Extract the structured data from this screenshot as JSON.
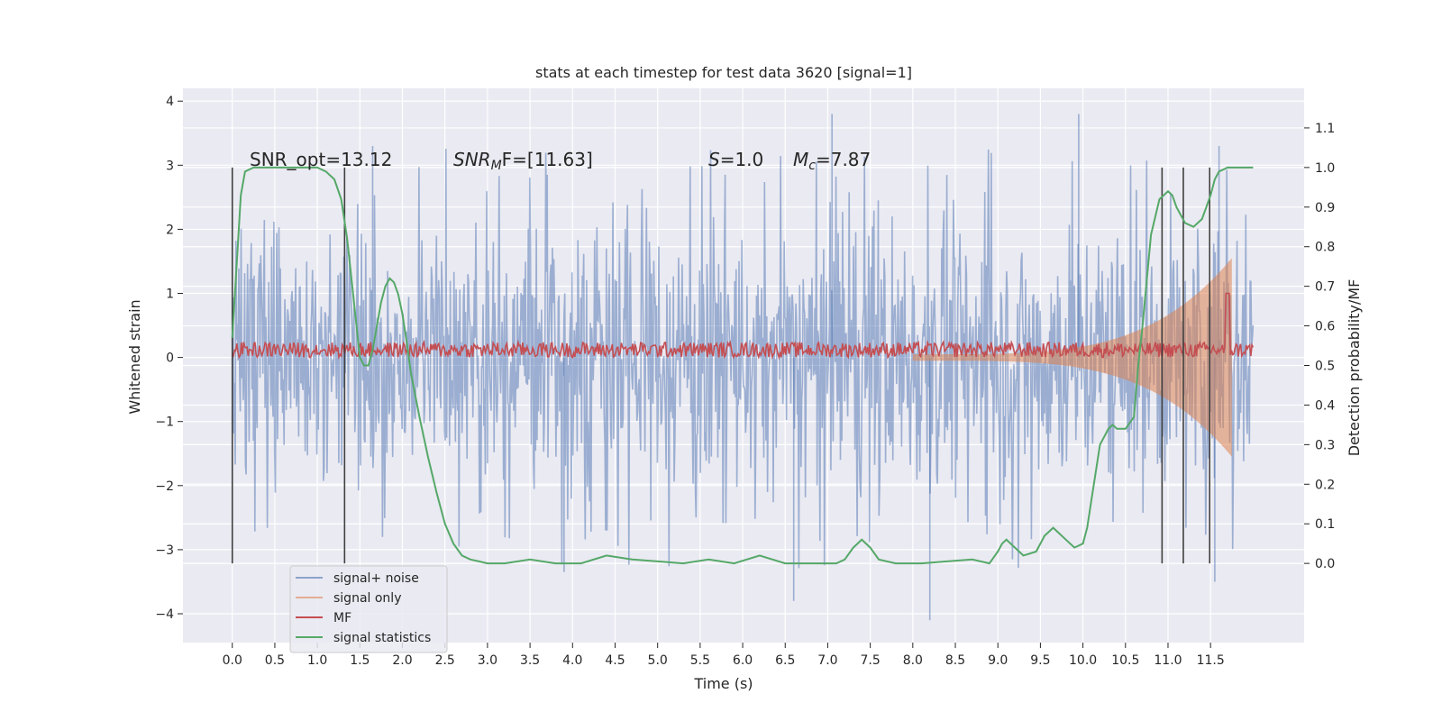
{
  "chart_data": {
    "type": "line",
    "title": "stats at each timestep for test data 3620 [signal=1]",
    "xlabel": "Time (s)",
    "ylabel": "Whitened strain",
    "ylabel_right": "Detection probability/MF",
    "xlim": [
      -0.58,
      12.6
    ],
    "ylim": [
      -4.45,
      4.2
    ],
    "ylim_right": [
      -0.2,
      1.2
    ],
    "x_ticks": [
      "0.0",
      "0.5",
      "1.0",
      "1.5",
      "2.0",
      "2.5",
      "3.0",
      "3.5",
      "4.0",
      "4.5",
      "5.0",
      "5.5",
      "6.0",
      "6.5",
      "7.0",
      "7.5",
      "8.0",
      "8.5",
      "9.0",
      "9.5",
      "10.0",
      "10.5",
      "11.0",
      "11.5"
    ],
    "y_ticks_left": [
      "−4",
      "−3",
      "−2",
      "−1",
      "0",
      "1",
      "2",
      "3",
      "4"
    ],
    "y_ticks_right": [
      "0.0",
      "0.1",
      "0.2",
      "0.3",
      "0.4",
      "0.5",
      "0.6",
      "0.7",
      "0.8",
      "0.9",
      "1.0",
      "1.1"
    ],
    "grid": true,
    "legend_position": "lower-left",
    "annotations": {
      "snr_opt": "SNR_opt=13.12",
      "snr_mf_sym": "SNR",
      "snr_mf_sub": "M",
      "snr_mf_tail": "F=[11.63]",
      "s_sym": "S",
      "s_tail": "=1.0",
      "mc_sym": "M",
      "mc_sub": "c",
      "mc_tail": "=7.87"
    },
    "series": [
      {
        "name": "signal+ noise",
        "color": "#4c72b0",
        "opacity": 0.5,
        "axis": "left",
        "envelope": {
          "x_range": [
            0.0,
            12.0
          ],
          "typical_amplitude": 1.4,
          "max_spikes": [
            3.8,
            -4.1
          ]
        }
      },
      {
        "name": "signal only",
        "color": "#dd8452",
        "opacity": 0.5,
        "axis": "left",
        "chirp": {
          "start": 8.0,
          "end": 11.75,
          "peak_amplitude": 1.55
        }
      },
      {
        "name": "MF",
        "color": "#c44e52",
        "axis": "left",
        "baseline": 0.12,
        "jitter": 0.12,
        "peak": {
          "x": 11.7,
          "y": 1.0
        }
      },
      {
        "name": "signal statistics",
        "color": "#55a868",
        "axis": "right",
        "x": [
          0.0,
          0.05,
          0.1,
          0.15,
          0.25,
          0.4,
          0.6,
          0.8,
          1.0,
          1.1,
          1.2,
          1.28,
          1.35,
          1.42,
          1.5,
          1.55,
          1.6,
          1.65,
          1.7,
          1.75,
          1.8,
          1.85,
          1.9,
          1.95,
          2.0,
          2.05,
          2.1,
          2.2,
          2.3,
          2.4,
          2.5,
          2.6,
          2.7,
          2.8,
          2.9,
          3.0,
          3.2,
          3.5,
          3.8,
          4.1,
          4.4,
          4.7,
          5.0,
          5.3,
          5.6,
          5.9,
          6.2,
          6.5,
          6.8,
          7.1,
          7.2,
          7.3,
          7.4,
          7.5,
          7.6,
          7.8,
          8.1,
          8.4,
          8.7,
          8.9,
          9.0,
          9.05,
          9.1,
          9.2,
          9.3,
          9.45,
          9.55,
          9.65,
          9.7,
          9.8,
          9.9,
          10.0,
          10.05,
          10.1,
          10.2,
          10.3,
          10.35,
          10.4,
          10.5,
          10.6,
          10.65,
          10.7,
          10.8,
          10.9,
          10.95,
          11.0,
          11.05,
          11.1,
          11.2,
          11.3,
          11.4,
          11.45,
          11.5,
          11.55,
          11.6,
          11.7,
          11.8,
          11.9,
          11.95,
          12.0
        ],
        "y": [
          0.57,
          0.75,
          0.93,
          0.99,
          1.0,
          1.0,
          1.0,
          1.0,
          1.0,
          0.99,
          0.97,
          0.92,
          0.82,
          0.68,
          0.52,
          0.5,
          0.5,
          0.54,
          0.6,
          0.66,
          0.7,
          0.72,
          0.71,
          0.68,
          0.63,
          0.56,
          0.48,
          0.37,
          0.27,
          0.18,
          0.1,
          0.05,
          0.02,
          0.01,
          0.005,
          0.0,
          0.0,
          0.01,
          0.0,
          0.0,
          0.02,
          0.01,
          0.005,
          0.0,
          0.01,
          0.0,
          0.02,
          0.0,
          0.0,
          0.0,
          0.01,
          0.04,
          0.06,
          0.04,
          0.01,
          0.0,
          0.0,
          0.005,
          0.01,
          0.0,
          0.03,
          0.05,
          0.06,
          0.04,
          0.02,
          0.03,
          0.07,
          0.09,
          0.08,
          0.06,
          0.04,
          0.05,
          0.09,
          0.16,
          0.3,
          0.34,
          0.35,
          0.34,
          0.34,
          0.37,
          0.5,
          0.6,
          0.83,
          0.92,
          0.93,
          0.94,
          0.93,
          0.9,
          0.86,
          0.85,
          0.87,
          0.9,
          0.93,
          0.97,
          0.99,
          1.0,
          1.0,
          1.0,
          1.0,
          1.0
        ]
      },
      {
        "name": "",
        "color": "#404040",
        "role": "vertical markers",
        "axis": "right",
        "x": [
          0.0,
          1.32,
          10.93,
          11.18,
          11.49
        ],
        "range": [
          0.0,
          1.0
        ]
      }
    ]
  }
}
